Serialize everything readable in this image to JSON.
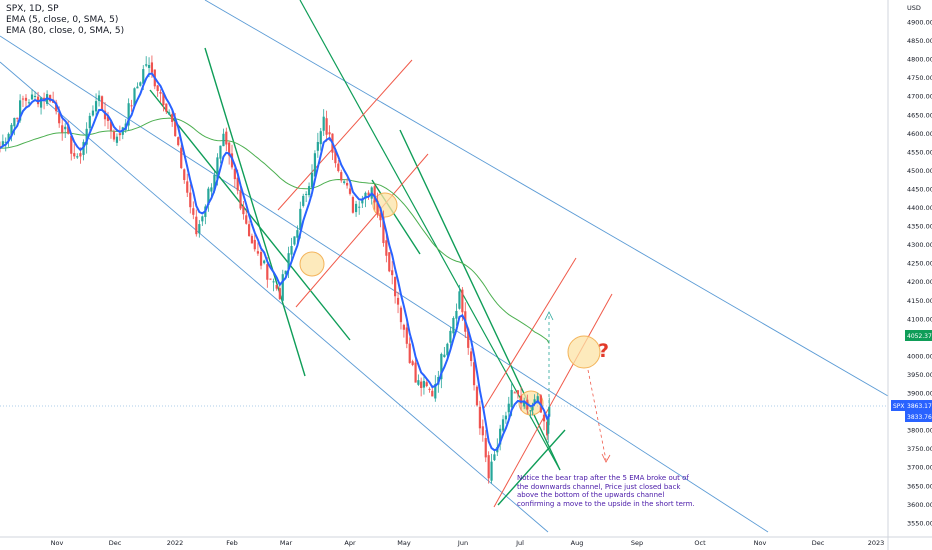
{
  "legend": {
    "title": "SPX, 1D, SP",
    "ema1": "EMA (5, close, 0, SMA, 5)",
    "ema2": "EMA (80, close, 0, SMA, 5)"
  },
  "axis": {
    "currency": "USD",
    "price_ticks": [
      4900,
      4850,
      4800,
      4750,
      4700,
      4650,
      4600,
      4550,
      4500,
      4450,
      4400,
      4350,
      4300,
      4250,
      4200,
      4150,
      4100,
      4050,
      4000,
      3950,
      3900,
      3850,
      3800,
      3750,
      3700,
      3650,
      3600,
      3550
    ],
    "time_labels": [
      "Nov",
      "Dec",
      "2022",
      "Feb",
      "Mar",
      "Apr",
      "May",
      "Jun",
      "Jul",
      "Aug",
      "Sep",
      "Oct",
      "Nov",
      "Dec",
      "2023"
    ]
  },
  "price_tags": {
    "spx_symbol": "SPX",
    "spx_value": "3863.17",
    "ema5_value": "3833.76",
    "ema80_value": "4052.37"
  },
  "annotation": {
    "note": "Notice the bear trap after the 5 EMA broke out of the downwards channel, Price just closed back above the bottom of the upwards channel confirming a move to the upside in the short term.",
    "question": "?"
  },
  "colors": {
    "up": "#26a69a",
    "down": "#ef5350",
    "ema_fast": "#2962ff",
    "ema_slow": "#4caf50",
    "channel_blue": "#5b9bd5",
    "channel_green": "#0f9d58",
    "channel_red": "#f05a4a",
    "circle_fill": "#fce3a6",
    "spx_tag": "#2962ff",
    "ema80_tag": "#0f9d58"
  },
  "chart_data": {
    "type": "candlestick",
    "symbol": "SPX",
    "interval": "1D",
    "ylim": [
      3510,
      4950
    ],
    "current_close": 3863.17,
    "ema5_last": 3833.76,
    "ema80_last": 4052.37,
    "approx_path": [
      {
        "date": "2021-10-25",
        "close": 4560
      },
      {
        "date": "2021-11-05",
        "close": 4690
      },
      {
        "date": "2021-11-18",
        "close": 4700
      },
      {
        "date": "2021-12-01",
        "close": 4520
      },
      {
        "date": "2021-12-10",
        "close": 4700
      },
      {
        "date": "2021-12-20",
        "close": 4580
      },
      {
        "date": "2022-01-03",
        "close": 4790
      },
      {
        "date": "2022-01-14",
        "close": 4660
      },
      {
        "date": "2022-01-27",
        "close": 4330
      },
      {
        "date": "2022-02-09",
        "close": 4580
      },
      {
        "date": "2022-02-24",
        "close": 4280
      },
      {
        "date": "2022-03-08",
        "close": 4170
      },
      {
        "date": "2022-03-29",
        "close": 4630
      },
      {
        "date": "2022-04-12",
        "close": 4400
      },
      {
        "date": "2022-04-21",
        "close": 4460
      },
      {
        "date": "2022-05-12",
        "close": 3930
      },
      {
        "date": "2022-05-20",
        "close": 3900
      },
      {
        "date": "2022-06-02",
        "close": 4170
      },
      {
        "date": "2022-06-16",
        "close": 3670
      },
      {
        "date": "2022-06-27",
        "close": 3900
      },
      {
        "date": "2022-07-06",
        "close": 3840
      },
      {
        "date": "2022-07-08",
        "close": 3900
      },
      {
        "date": "2022-07-14",
        "close": 3790
      },
      {
        "date": "2022-07-15",
        "close": 3863.17
      }
    ]
  }
}
